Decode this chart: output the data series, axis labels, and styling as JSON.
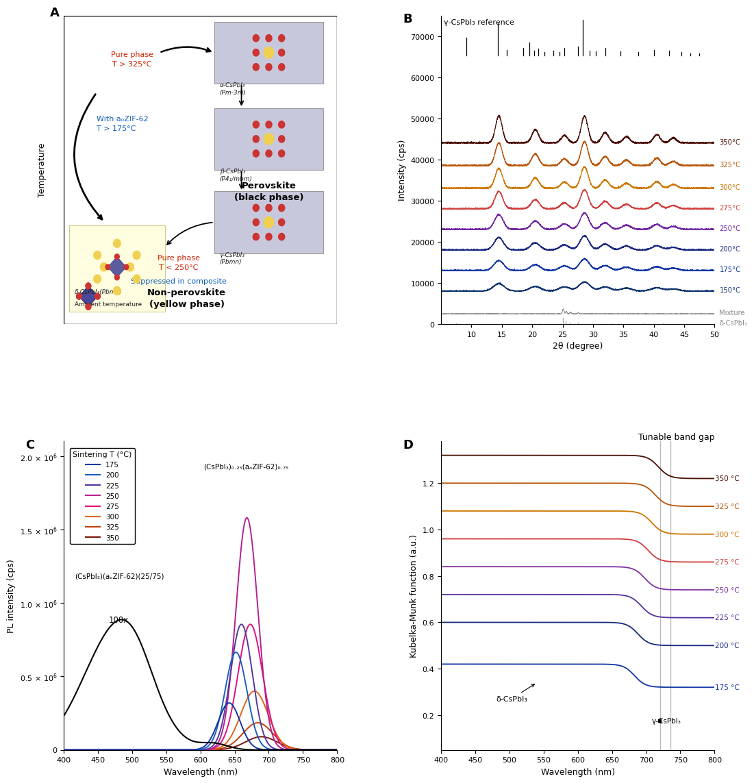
{
  "panel_label_fontsize": 13,
  "panel_A": {
    "title_perovskite": "Perovskite\n(black phase)",
    "title_nonperovskite": "Non-perovskite\n(yellow phase)",
    "pure_phase_top": "Pure phase\nT > 325°C",
    "with_ZIF": "With aₒZIF-62\nT > 175°C",
    "pure_phase_bottom": "Pure phase\nT < 250°C",
    "suppressed": "Suppressed in composite",
    "alpha_label": "α-CsPbI₃\n(Pm-3m̅)",
    "beta_label": "β-CsPbI₃\n(P4₁/mbm)",
    "gamma_label": "γ-CsPbI₃\n(Pbmn)",
    "delta_label": "δ-CsPbI₃(Pbmn)",
    "ambient_label": "Ambient temperature"
  },
  "panel_B": {
    "xlabel": "2θ (degree)",
    "ylabel": "Intensity (cps)",
    "xmin": 5,
    "xmax": 50,
    "ymin": 0,
    "ymax": 75000,
    "reference_label": "γ-CsPbI₃ reference",
    "temp_labels": [
      "350°C",
      "325°C",
      "300°C",
      "275°C",
      "250°C",
      "200°C",
      "175°C",
      "150°C",
      "Mixture",
      "δ-CsPbI₃"
    ],
    "temp_offsets": [
      44000,
      38500,
      33000,
      28000,
      23000,
      18000,
      13000,
      8000,
      2500,
      0
    ],
    "colors_B": [
      "#4a0f05",
      "#b85508",
      "#cc7700",
      "#d04040",
      "#7025a0",
      "#1a2880",
      "#1035a5",
      "#103570",
      "#888888",
      "#888888"
    ],
    "ref_peaks_x": [
      9.2,
      14.3,
      15.8,
      18.5,
      19.5,
      20.3,
      21.0,
      22.0,
      23.5,
      24.5,
      25.3,
      27.5,
      28.3,
      29.5,
      30.5,
      32.0,
      34.5,
      37.5,
      40.0,
      42.5,
      44.5,
      46.0,
      47.5
    ],
    "ref_peaks_h": [
      0.5,
      0.9,
      0.15,
      0.2,
      0.35,
      0.12,
      0.18,
      0.08,
      0.12,
      0.08,
      0.2,
      0.25,
      1.0,
      0.12,
      0.1,
      0.2,
      0.1,
      0.08,
      0.15,
      0.12,
      0.08,
      0.06,
      0.06
    ],
    "delta_ref_x": [
      7.5,
      11.5,
      14.8,
      21.2,
      25.0,
      25.5,
      26.2,
      27.5,
      29.8,
      33.0,
      38.5,
      41.5
    ],
    "delta_ref_h": [
      0.08,
      0.04,
      0.05,
      0.06,
      0.8,
      0.35,
      0.2,
      0.15,
      0.1,
      0.08,
      0.06,
      0.06
    ]
  },
  "panel_C": {
    "xlabel": "Wavelength (nm)",
    "ylabel": "PL intensity (cps)",
    "xmin": 400,
    "xmax": 800,
    "ymin": 0,
    "ymax": 2100000.0,
    "legend_title": "Sintering T (°C)",
    "legend_temps": [
      "175",
      "200",
      "225",
      "250",
      "275",
      "300",
      "325",
      "350"
    ],
    "colors_C": [
      "#1035a5",
      "#1a5fc0",
      "#5535a0",
      "#b52090",
      "#e01080",
      "#e06518",
      "#c04008",
      "#7a1808"
    ],
    "formula1": "(CsPbI₃)₀.₂₅(aₒZIF-62)₀.₇₅",
    "formula2": "(CsPbI₃)(aₒZIF-62)(25/75)",
    "annotation_100x": "100x",
    "centers_C": [
      642,
      652,
      660,
      668,
      673,
      679,
      684,
      689
    ],
    "heights_C": [
      320000,
      665000,
      855000,
      1580000,
      855000,
      400000,
      185000,
      90000
    ],
    "widths_C": [
      16,
      16,
      16,
      16,
      18,
      20,
      22,
      23
    ]
  },
  "panel_D": {
    "xlabel": "Wavelength (nm)",
    "ylabel": "Kubelka-Munk function (a.u.)",
    "title": "Tunable band gap",
    "xmin": 400,
    "xmax": 800,
    "ymin": 0.05,
    "ymax": 1.35,
    "temp_labels_D": [
      "350 °C",
      "325 °C",
      "300 °C",
      "275 °C",
      "250 °C",
      "225 °C",
      "200 °C",
      "175 °C"
    ],
    "colors_D": [
      "#4a0f05",
      "#b85508",
      "#cc7700",
      "#d04040",
      "#8030a0",
      "#5530a0",
      "#1a2880",
      "#1035a5"
    ],
    "base_values": [
      1.22,
      1.1,
      0.98,
      0.86,
      0.74,
      0.62,
      0.5,
      0.32
    ],
    "step_heights": [
      0.1,
      0.1,
      0.1,
      0.1,
      0.1,
      0.1,
      0.1,
      0.1
    ],
    "edge_positions": [
      718,
      713,
      708,
      703,
      698,
      693,
      688,
      683
    ],
    "edge_widths": [
      8,
      8,
      8,
      8,
      8,
      8,
      8,
      8
    ],
    "delta_annotation": "δ-CsPbI₃",
    "gamma_annotation": "γ-CsPbI₃",
    "vline1": 720,
    "vline2": 735,
    "yticks": [
      0.2,
      0.4,
      0.6,
      0.8,
      1.0,
      1.2
    ]
  }
}
